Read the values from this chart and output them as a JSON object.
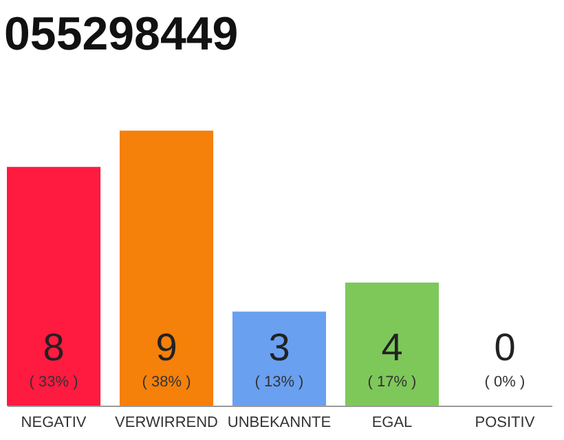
{
  "chart_data": {
    "type": "bar",
    "title": "055298449",
    "categories": [
      "NEGATIV",
      "VERWIRREND",
      "UNBEKANNTE",
      "EGAL",
      "POSITIV"
    ],
    "values": [
      33,
      38,
      13,
      17,
      0
    ],
    "colors": [
      "#ff1a40",
      "#f5800a",
      "#6aa0f0",
      "#7ec85a",
      "#c0c0c0"
    ],
    "value_labels": [
      "( 33% )",
      "( 38% )",
      "( 13% )",
      "( 17% )",
      "( 0% )"
    ],
    "annotations": [
      "8",
      "9",
      "3",
      "4",
      "0"
    ]
  }
}
